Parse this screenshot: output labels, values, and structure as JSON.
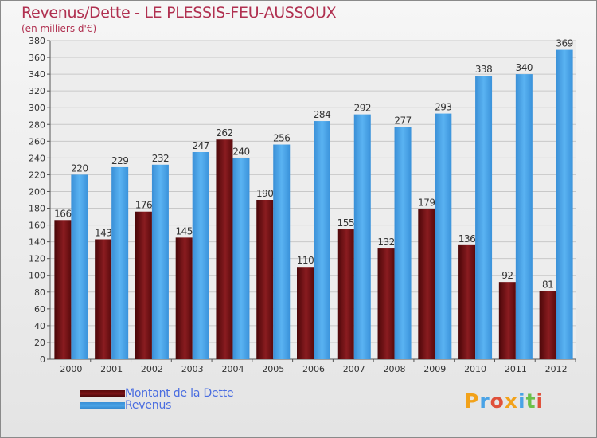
{
  "title": "Revenus/Dette - LE PLESSIS-FEU-AUSSOUX",
  "subtitle": "(en milliers d'€)",
  "colors": {
    "dette": "#7a1418",
    "revenus": "#4aa3e6",
    "title": "#b03050",
    "legend_text": "#4a6de0"
  },
  "legend": {
    "dette_label": "Montant de la Dette",
    "revenus_label": "Revenus"
  },
  "logo": {
    "text": "Proxiti"
  },
  "chart_data": {
    "type": "bar",
    "title": "Revenus/Dette - LE PLESSIS-FEU-AUSSOUX",
    "ylabel": "(en milliers d'€)",
    "xlabel": "",
    "categories": [
      "2000",
      "2001",
      "2002",
      "2003",
      "2004",
      "2005",
      "2006",
      "2007",
      "2008",
      "2009",
      "2010",
      "2011",
      "2012"
    ],
    "series": [
      {
        "name": "Montant de la Dette",
        "values": [
          166,
          143,
          176,
          145,
          262,
          190,
          110,
          155,
          132,
          179,
          136,
          92,
          81
        ]
      },
      {
        "name": "Revenus",
        "values": [
          220,
          229,
          232,
          247,
          240,
          256,
          284,
          292,
          277,
          293,
          338,
          340,
          369
        ]
      }
    ],
    "ylim": [
      0,
      380
    ],
    "yticks": [
      0,
      20,
      40,
      60,
      80,
      100,
      120,
      140,
      160,
      180,
      200,
      220,
      240,
      260,
      280,
      300,
      320,
      340,
      360,
      380
    ],
    "grid": true,
    "legend_position": "bottom-left"
  }
}
